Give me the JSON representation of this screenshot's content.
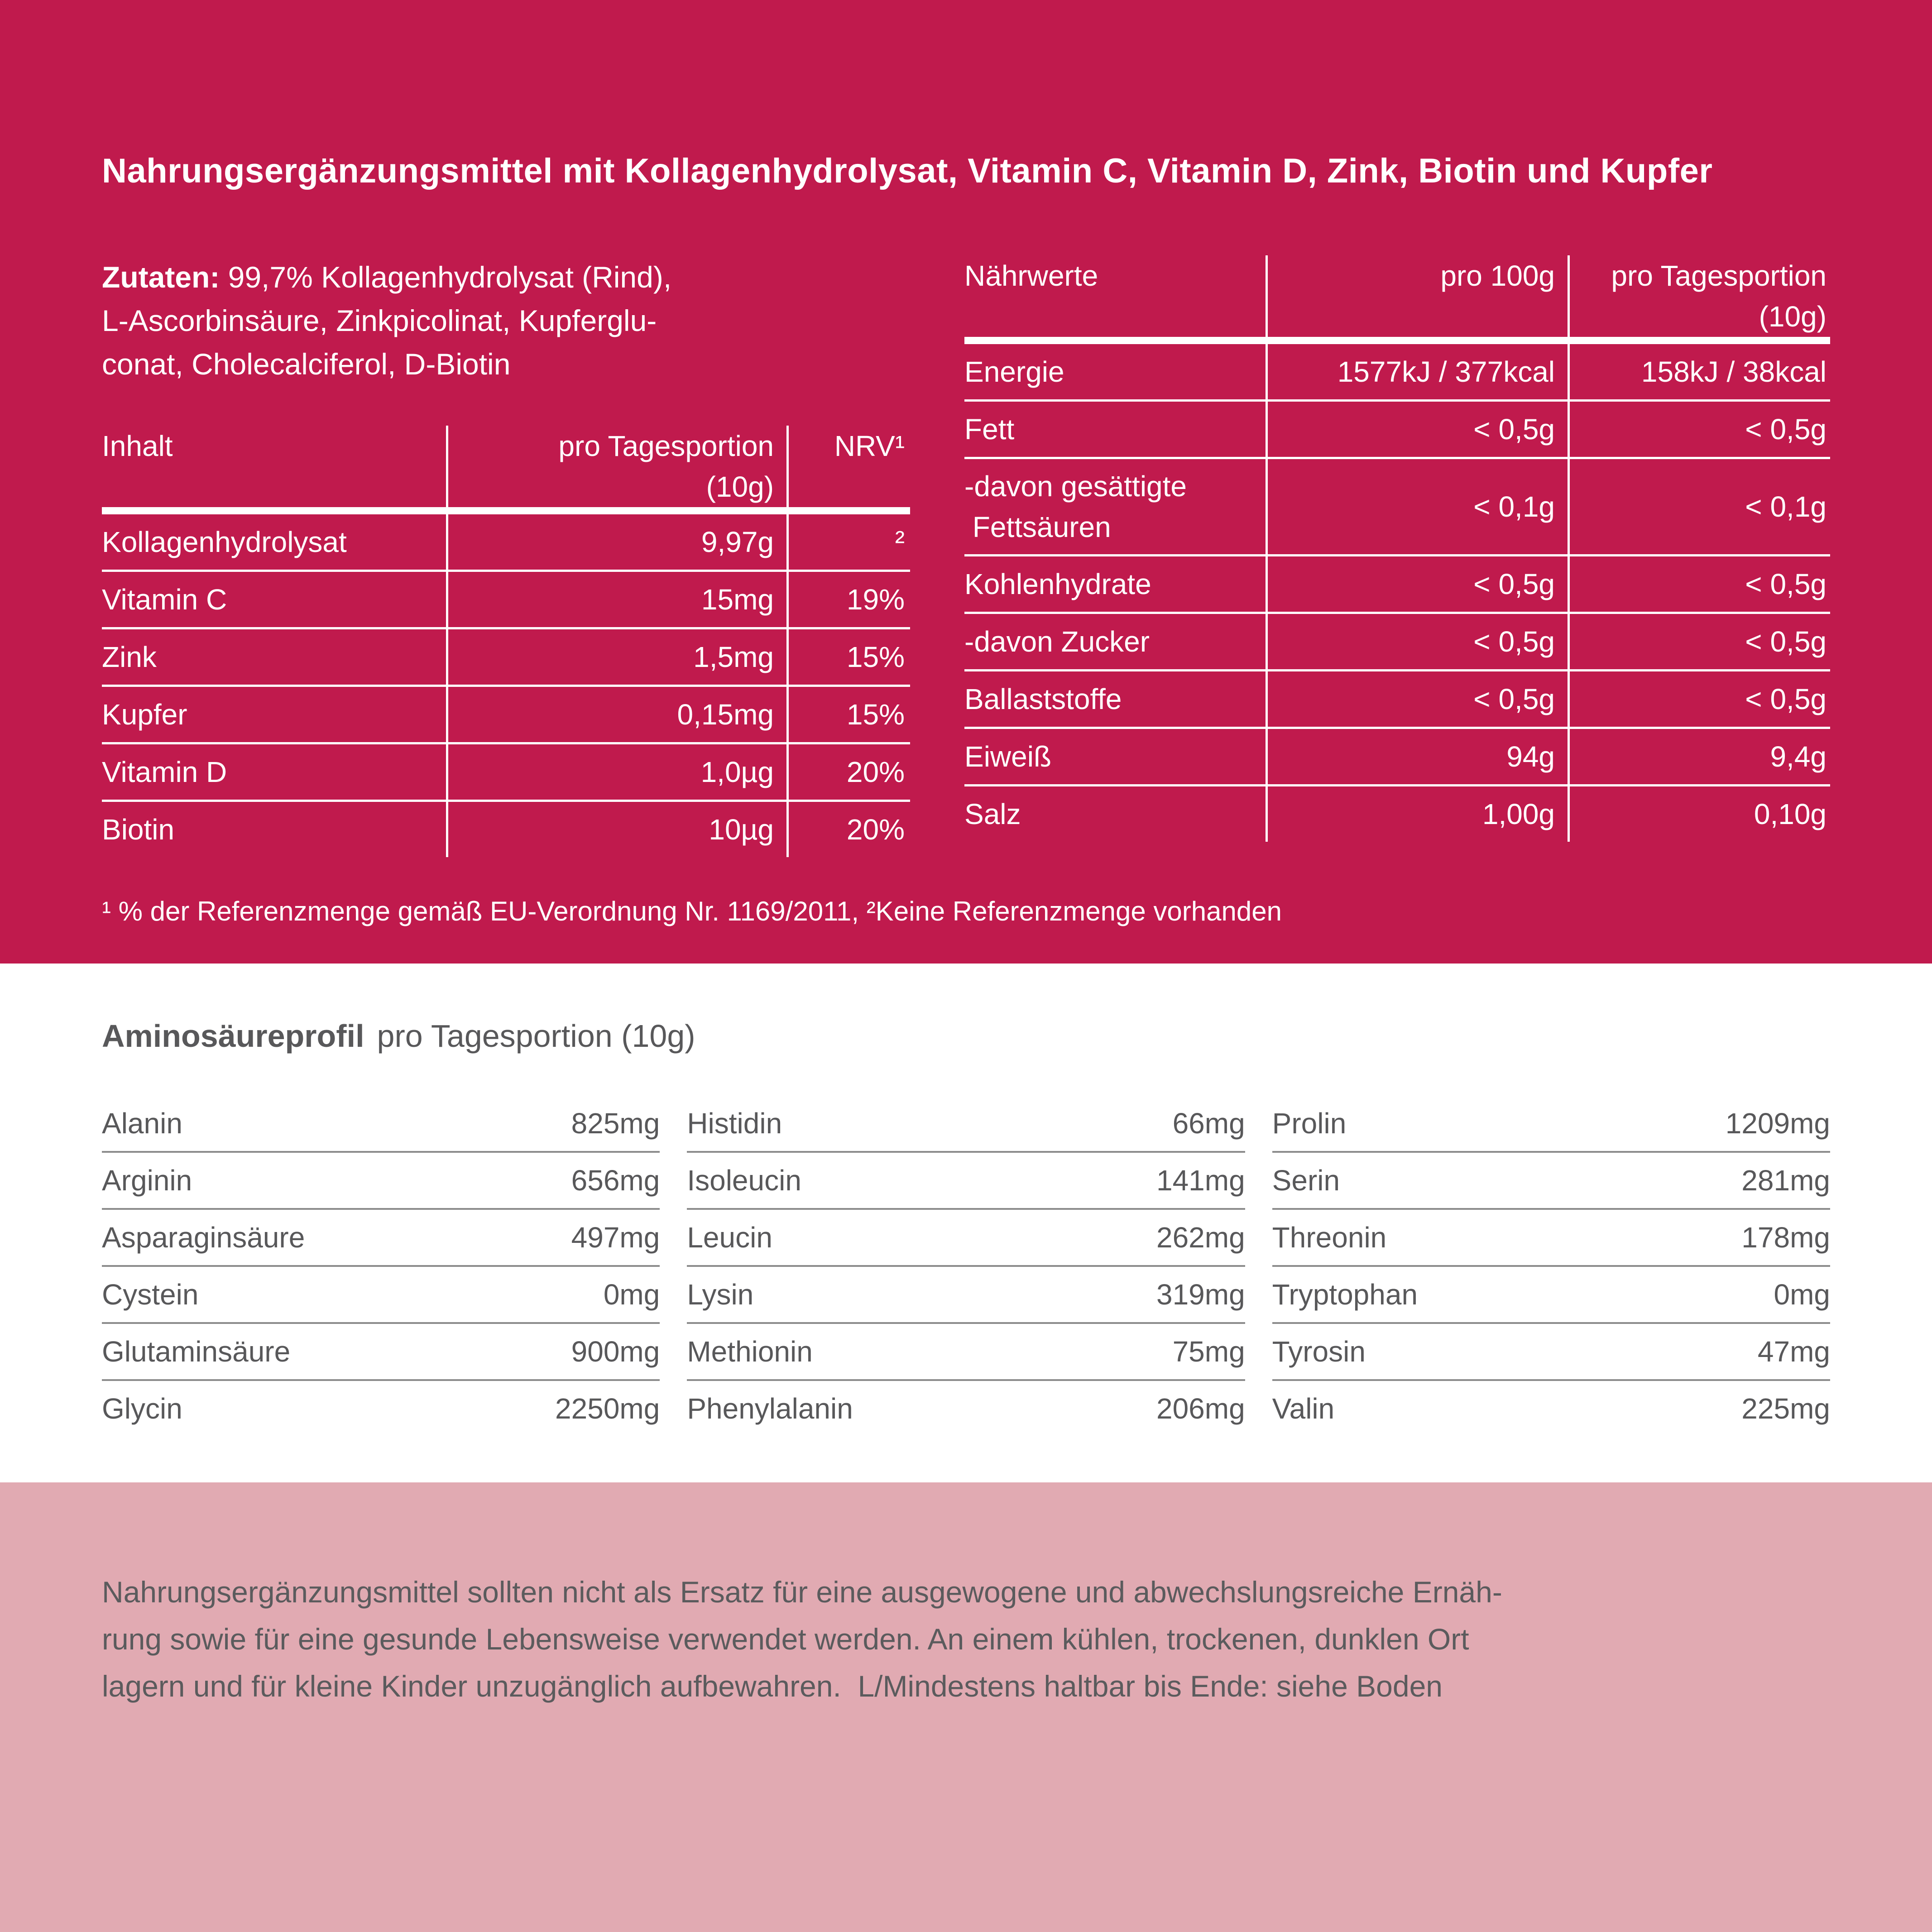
{
  "colors": {
    "crimson_background": "#C01A4D",
    "pink_background": "#E1AAB2",
    "white": "#FFFFFF",
    "gray_text": "#58585A"
  },
  "header": {
    "title": "Nahrungsergänzungsmittel mit Kollagenhydrolysat, Vitamin C, Vitamin D, Zink, Biotin und Kupfer"
  },
  "ingredients": {
    "label": "Zutaten:",
    "text": " 99,7% Kollagenhydrolysat (Rind),\nL-Ascorbinsäure, Zinkpicolinat, Kupferglu-\nconat, Cholecalciferol, D-Biotin"
  },
  "inhalt_table": {
    "col_item": "Inhalt",
    "col_portion": "pro Tagesportion\n(10g)",
    "col_nrv": "NRV¹",
    "rows": [
      {
        "label": "Kollagenhydrolysat",
        "portion": "9,97g",
        "nrv": "²"
      },
      {
        "label": "Vitamin C",
        "portion": "15mg",
        "nrv": "19%"
      },
      {
        "label": "Zink",
        "portion": "1,5mg",
        "nrv": "15%"
      },
      {
        "label": "Kupfer",
        "portion": "0,15mg",
        "nrv": "15%"
      },
      {
        "label": "Vitamin D",
        "portion": "1,0µg",
        "nrv": "20%"
      },
      {
        "label": "Biotin",
        "portion": "10µg",
        "nrv": "20%"
      }
    ]
  },
  "naehrwerte_table": {
    "col_item": "Nährwerte",
    "col_100g": "pro 100g",
    "col_portion": "pro Tagesportion\n(10g)",
    "rows": [
      {
        "label": "Energie",
        "per_100g": "1577kJ / 377kcal",
        "portion": "158kJ / 38kcal"
      },
      {
        "label": "Fett",
        "per_100g": "< 0,5g",
        "portion": "< 0,5g"
      },
      {
        "label": "-davon gesättigte\n Fettsäuren",
        "per_100g": "< 0,1g",
        "portion": "< 0,1g"
      },
      {
        "label": "Kohlenhydrate",
        "per_100g": "< 0,5g",
        "portion": "< 0,5g"
      },
      {
        "label": "-davon Zucker",
        "per_100g": "< 0,5g",
        "portion": "< 0,5g"
      },
      {
        "label": "Ballaststoffe",
        "per_100g": "< 0,5g",
        "portion": "< 0,5g"
      },
      {
        "label": "Eiweiß",
        "per_100g": "94g",
        "portion": "9,4g"
      },
      {
        "label": "Salz",
        "per_100g": "1,00g",
        "portion": "0,10g"
      }
    ]
  },
  "footnote": "¹ % der Referenzmenge gemäß EU-Verordnung Nr. 1169/2011, ²Keine Referenzmenge vorhanden",
  "amino_profile": {
    "title": "Aminosäureprofil",
    "subtitle": "pro Tagesportion (10g)",
    "col1": [
      {
        "label": "Alanin",
        "value": "825mg"
      },
      {
        "label": "Arginin",
        "value": "656mg"
      },
      {
        "label": "Asparaginsäure",
        "value": "497mg"
      },
      {
        "label": "Cystein",
        "value": "0mg"
      },
      {
        "label": "Glutaminsäure",
        "value": "900mg"
      },
      {
        "label": "Glycin",
        "value": "2250mg"
      }
    ],
    "col2": [
      {
        "label": "Histidin",
        "value": "66mg"
      },
      {
        "label": "Isoleucin",
        "value": "141mg"
      },
      {
        "label": "Leucin",
        "value": "262mg"
      },
      {
        "label": "Lysin",
        "value": "319mg"
      },
      {
        "label": "Methionin",
        "value": "75mg"
      },
      {
        "label": "Phenylalanin",
        "value": "206mg"
      }
    ],
    "col3": [
      {
        "label": "Prolin",
        "value": "1209mg"
      },
      {
        "label": "Serin",
        "value": "281mg"
      },
      {
        "label": "Threonin",
        "value": "178mg"
      },
      {
        "label": "Tryptophan",
        "value": "0mg"
      },
      {
        "label": "Tyrosin",
        "value": "47mg"
      },
      {
        "label": "Valin",
        "value": "225mg"
      }
    ]
  },
  "disclaimer": "Nahrungsergänzungsmittel sollten nicht als Ersatz für eine ausgewogene und abwechslungsreiche Ernäh-\nrung sowie für eine gesunde Lebensweise verwendet werden. An einem kühlen, trockenen, dunklen Ort\nlagern und für kleine Kinder unzugänglich aufbewahren.  L/Mindestens haltbar bis Ende: siehe Boden"
}
